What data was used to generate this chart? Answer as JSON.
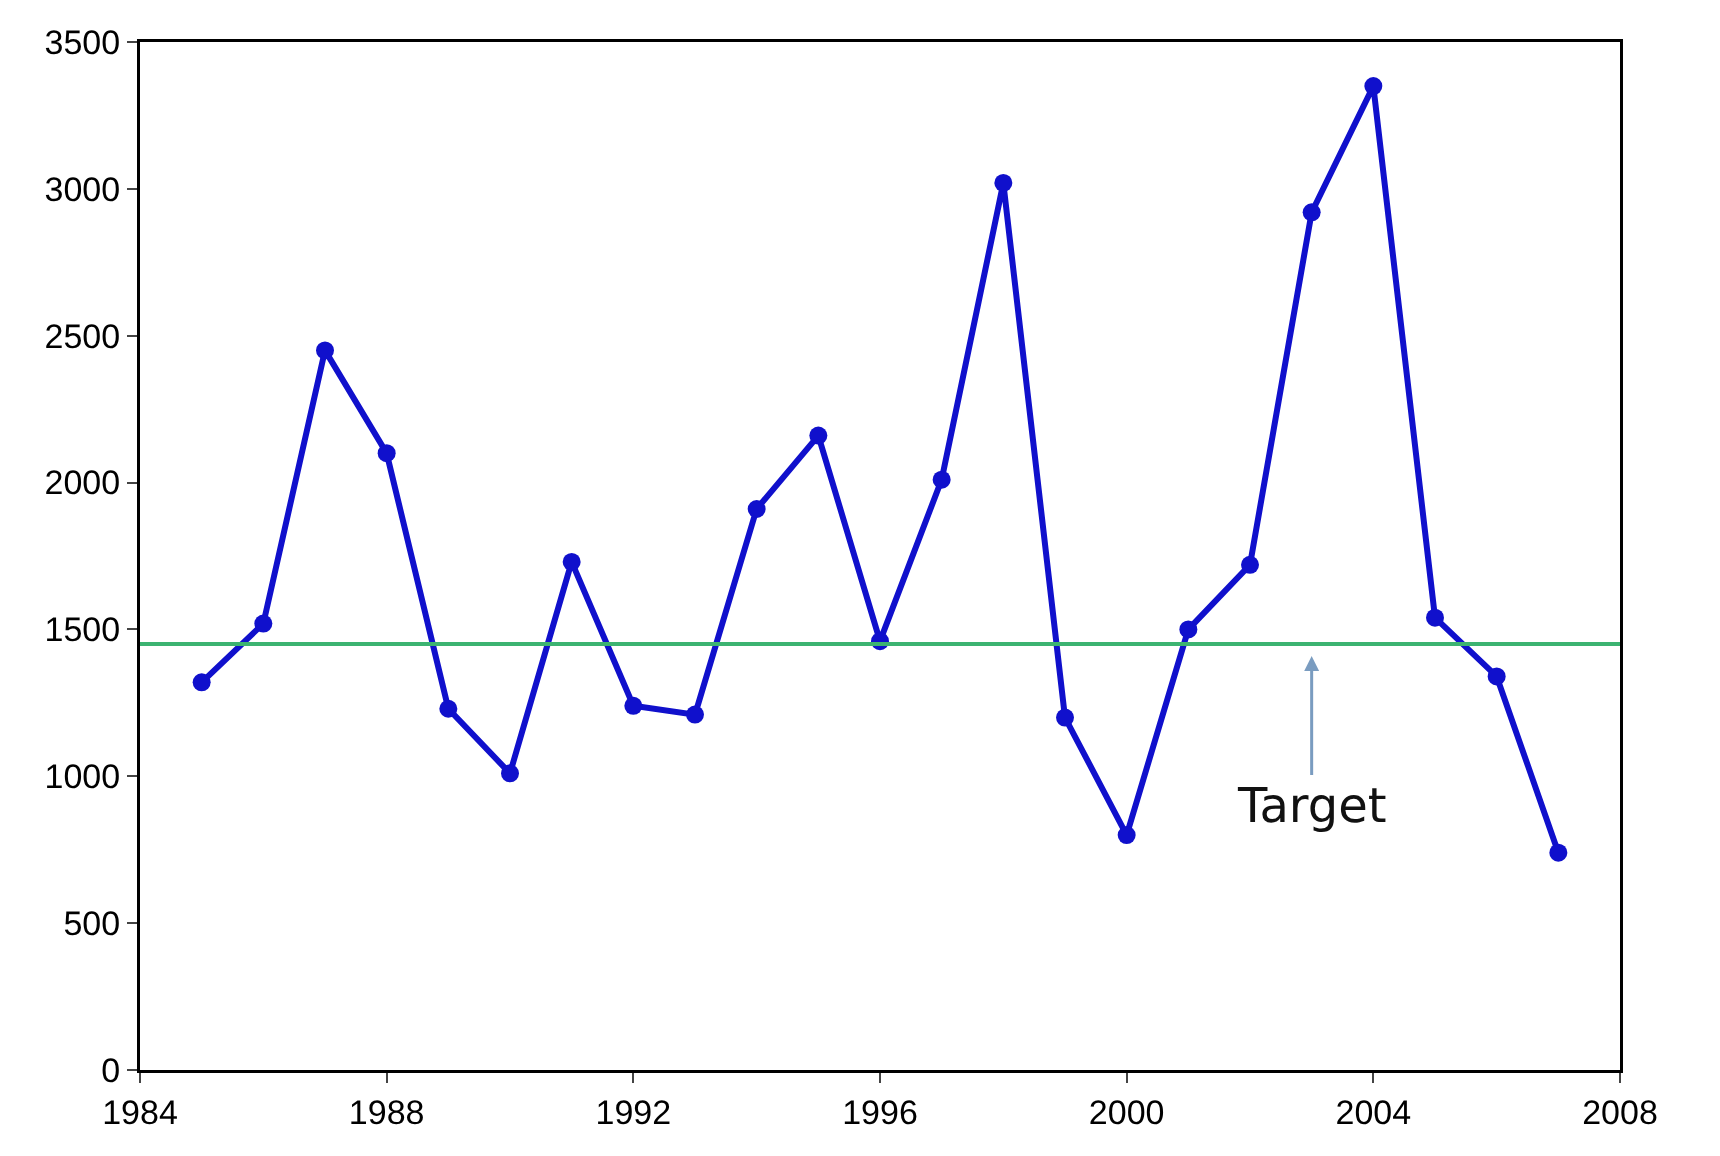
{
  "chart_data": {
    "type": "line",
    "x": [
      1985,
      1986,
      1987,
      1988,
      1989,
      1990,
      1991,
      1992,
      1993,
      1994,
      1995,
      1996,
      1997,
      1998,
      1999,
      2000,
      2001,
      2002,
      2003,
      2004,
      2005,
      2006,
      2007
    ],
    "series": [
      {
        "color": "#1010cc",
        "values": [
          1320,
          1520,
          2450,
          2100,
          1230,
          1010,
          1730,
          1240,
          1210,
          1910,
          2160,
          1460,
          2010,
          3020,
          1200,
          800,
          1500,
          1720,
          2920,
          3350,
          1540,
          1340,
          740
        ]
      }
    ],
    "xlim": [
      1984,
      2008
    ],
    "xticks": [
      1984,
      1988,
      1992,
      1996,
      2000,
      2004,
      2008
    ],
    "ylim": [
      0,
      3500
    ],
    "yticks": [
      0,
      500,
      1000,
      1500,
      2000,
      2500,
      3000,
      3500
    ],
    "ref_lines": [
      {
        "axis": "y",
        "value": 1450,
        "label": "Target",
        "color": "#3cb371"
      }
    ],
    "grid": false,
    "legend": false,
    "marker": "circle",
    "line_style": "solid"
  }
}
